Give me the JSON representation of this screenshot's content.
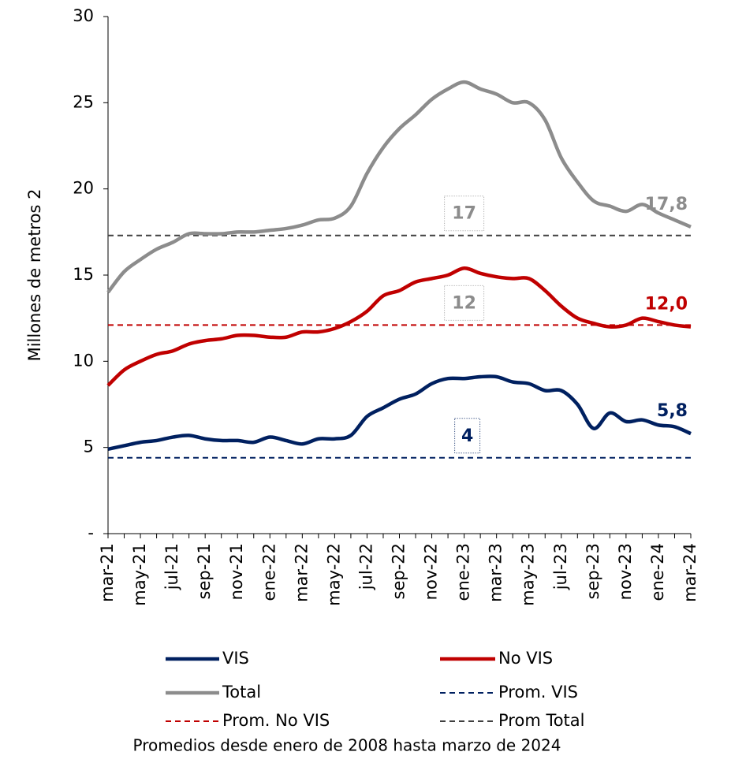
{
  "chart_data": {
    "type": "line",
    "y_label": "Millones de metros 2",
    "footnote": "Promedios desde enero de 2008 hasta marzo de 2024",
    "categories": [
      "mar-21",
      null,
      "may-21",
      null,
      "jul-21",
      null,
      "sep-21",
      null,
      "nov-21",
      null,
      "ene-22",
      null,
      "mar-22",
      null,
      "may-22",
      null,
      "jul-22",
      null,
      "sep-22",
      null,
      "nov-22",
      null,
      "ene-23",
      null,
      "mar-23",
      null,
      "may-23",
      null,
      "jul-23",
      null,
      "sep-23",
      null,
      "nov-23",
      null,
      "ene-24",
      null,
      "mar-24"
    ],
    "ylim": [
      0,
      30
    ],
    "yticks": [
      {
        "value": 0,
        "label": "-"
      },
      5,
      10,
      15,
      20,
      25,
      30
    ],
    "series": [
      {
        "name": "VIS",
        "color": "#002060",
        "values": [
          4.9,
          5.1,
          5.3,
          5.4,
          5.6,
          5.7,
          5.5,
          5.4,
          5.4,
          5.3,
          5.6,
          5.4,
          5.2,
          5.5,
          5.5,
          5.7,
          6.8,
          7.3,
          7.8,
          8.1,
          8.7,
          9.0,
          9.0,
          9.1,
          9.1,
          8.8,
          8.7,
          8.3,
          8.3,
          7.5,
          6.1,
          7.0,
          6.5,
          6.6,
          6.3,
          6.2,
          5.8
        ],
        "value_labels": [
          null,
          null,
          null,
          null,
          null,
          null,
          null,
          null,
          null,
          null,
          null,
          null,
          null,
          null,
          null,
          null,
          null,
          null,
          null,
          null,
          null,
          null,
          null,
          null,
          null,
          null,
          null,
          null,
          null,
          null,
          null,
          null,
          null,
          null,
          null,
          null,
          "5,8"
        ]
      },
      {
        "name": "No VIS",
        "color": "#c00000",
        "values": [
          8.6,
          9.5,
          10.0,
          10.4,
          10.6,
          11.0,
          11.2,
          11.3,
          11.5,
          11.5,
          11.4,
          11.4,
          11.7,
          11.7,
          11.9,
          12.3,
          12.9,
          13.8,
          14.1,
          14.6,
          14.8,
          15.0,
          15.4,
          15.1,
          14.9,
          14.8,
          14.8,
          14.1,
          13.2,
          12.5,
          12.2,
          12.0,
          12.1,
          12.5,
          12.3,
          12.1,
          12.0
        ],
        "value_labels": [
          null,
          null,
          null,
          null,
          null,
          null,
          null,
          null,
          null,
          null,
          null,
          null,
          null,
          null,
          null,
          null,
          null,
          null,
          null,
          null,
          null,
          null,
          null,
          null,
          null,
          null,
          null,
          null,
          null,
          null,
          null,
          null,
          null,
          null,
          null,
          null,
          "12,0"
        ]
      },
      {
        "name": "Total",
        "color": "#8c8c8c",
        "values": [
          14.0,
          15.2,
          15.9,
          16.5,
          16.9,
          17.4,
          17.4,
          17.4,
          17.5,
          17.5,
          17.6,
          17.7,
          17.9,
          18.2,
          18.3,
          19.0,
          20.9,
          22.4,
          23.5,
          24.3,
          25.2,
          25.8,
          26.2,
          25.8,
          25.5,
          25.0,
          25.0,
          24.0,
          21.8,
          20.4,
          19.3,
          19.0,
          18.7,
          19.1,
          18.6,
          18.2,
          17.8
        ],
        "value_labels": [
          null,
          null,
          null,
          null,
          null,
          null,
          null,
          null,
          null,
          null,
          null,
          null,
          null,
          null,
          null,
          null,
          null,
          null,
          null,
          null,
          null,
          null,
          null,
          null,
          null,
          null,
          null,
          null,
          null,
          null,
          null,
          null,
          null,
          null,
          null,
          null,
          "17,8"
        ]
      }
    ],
    "averages": [
      {
        "name": "Prom. VIS",
        "color": "#002060",
        "value": 4.4,
        "label": "4"
      },
      {
        "name": "Prom. No VIS",
        "color": "#c00000",
        "value": 12.1,
        "label": "12"
      },
      {
        "name": "Prom Total",
        "color": "#404040",
        "value": 17.3,
        "label": "17"
      }
    ]
  }
}
